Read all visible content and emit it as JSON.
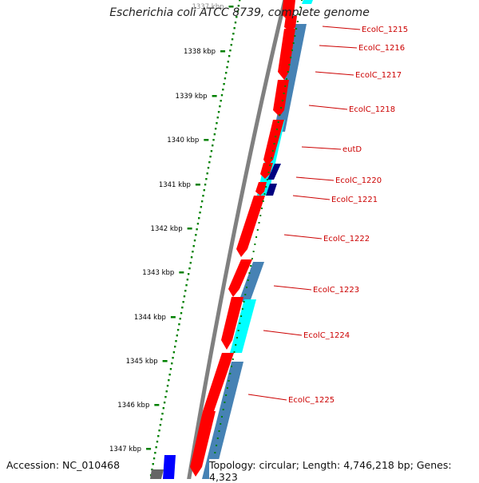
{
  "title": "Escherichia coli ATCC 8739, complete genome",
  "footer": {
    "accession": "Accession: NC_010468",
    "summary": "Topology: circular; Length: 4,746,218 bp; Genes: 4,323"
  },
  "colors": {
    "cds": "#ff0000",
    "feature_steel": "#4682b4",
    "feature_cyan": "#00ffff",
    "feature_navy": "#000080",
    "feature_blue": "#0000ff",
    "backbone": "#808080",
    "ticks": "#008000",
    "label_red": "#cc0000"
  },
  "ruler": {
    "unit": "kbp",
    "labels": [
      "1337 kbp",
      "1338 kbp",
      "1339 kbp",
      "1340 kbp",
      "1341 kbp",
      "1342 kbp",
      "1343 kbp",
      "1344 kbp",
      "1345 kbp",
      "1346 kbp",
      "1347 kbp"
    ]
  },
  "genes": [
    {
      "name": "EcolC_1215"
    },
    {
      "name": "EcolC_1216"
    },
    {
      "name": "EcolC_1217"
    },
    {
      "name": "EcolC_1218"
    },
    {
      "name": "eutD"
    },
    {
      "name": "EcolC_1220"
    },
    {
      "name": "EcolC_1221"
    },
    {
      "name": "EcolC_1222"
    },
    {
      "name": "EcolC_1223"
    },
    {
      "name": "EcolC_1224"
    },
    {
      "name": "EcolC_1225"
    }
  ]
}
